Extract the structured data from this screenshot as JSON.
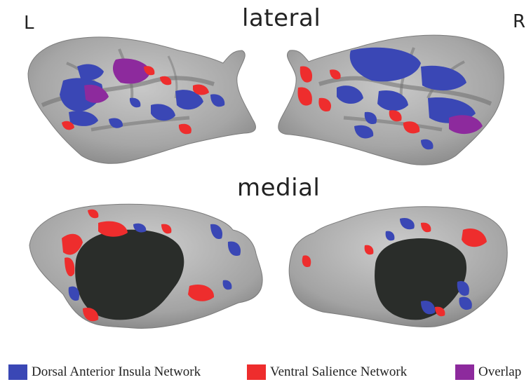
{
  "labels": {
    "left": "L",
    "right": "R",
    "top_view": "lateral",
    "bottom_view": "medial"
  },
  "legend": [
    {
      "label": "Dorsal Anterior Insula Network",
      "color": "#3a47b5"
    },
    {
      "label": "Ventral Salience Network",
      "color": "#ee2d2d"
    },
    {
      "label": "Overlap",
      "color": "#8d2a9d"
    }
  ],
  "colors": {
    "brain_surface": "#a9a9a9",
    "sulcus": "#6e6e6e",
    "medial_wall": "#2a2d2a",
    "dorsal_anterior_insula": "#3a47b5",
    "ventral_salience": "#ee2d2d",
    "overlap": "#8d2a9d"
  }
}
